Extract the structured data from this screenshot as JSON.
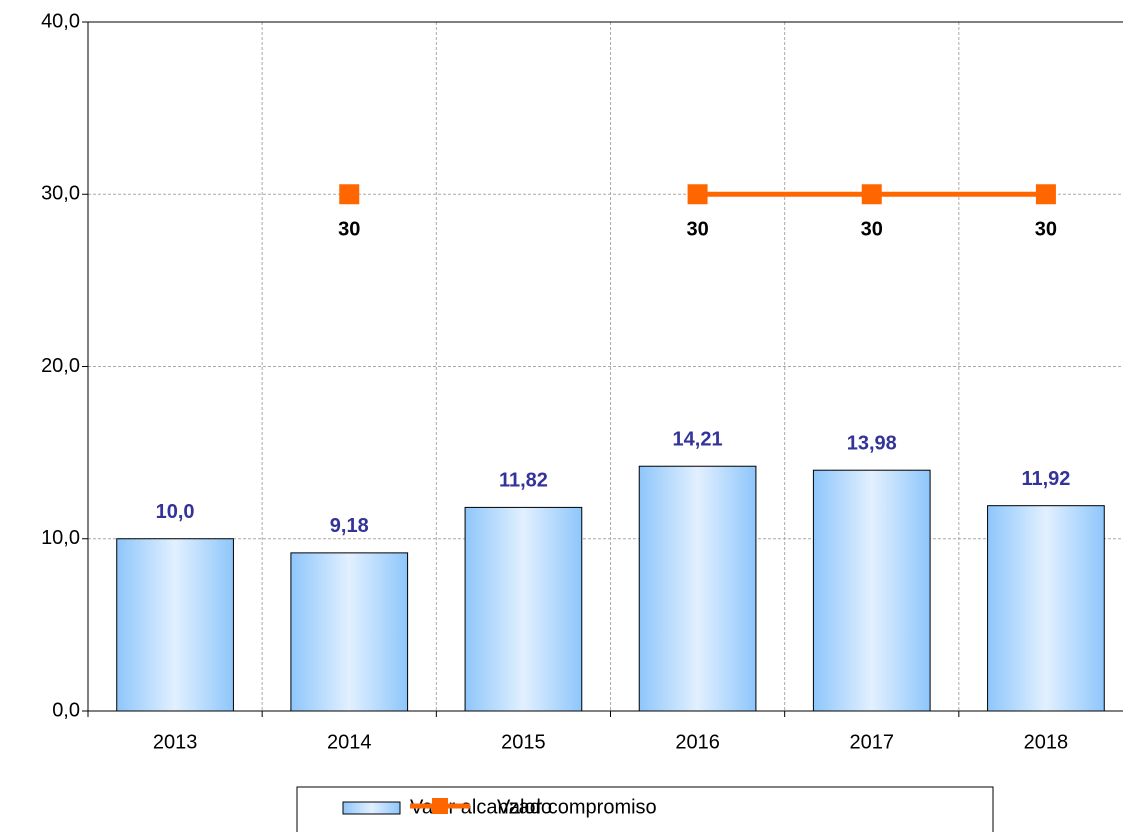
{
  "chart_data": {
    "type": "bar",
    "categories": [
      "2013",
      "2014",
      "2015",
      "2016",
      "2017",
      "2018"
    ],
    "series": [
      {
        "name": "Valor alcanzado",
        "type": "bar",
        "color": "#9ccfff",
        "values": [
          10.0,
          9.18,
          11.82,
          14.21,
          13.98,
          11.92
        ],
        "value_labels": [
          "10,0",
          "9,18",
          "11,82",
          "14,21",
          "13,98",
          "11,92"
        ]
      },
      {
        "name": "Valor compromiso",
        "type": "line",
        "color": "#ff6600",
        "values": [
          null,
          30,
          null,
          30,
          30,
          30
        ]
      }
    ],
    "ylim": [
      0,
      40
    ],
    "yticks": [
      {
        "value": 0,
        "label": "0,0"
      },
      {
        "value": 10,
        "label": "10,0"
      },
      {
        "value": 20,
        "label": "20,0"
      },
      {
        "value": 30,
        "label": "30,0"
      },
      {
        "value": 40,
        "label": "40,0"
      }
    ],
    "grid": true,
    "legend": "bottom"
  }
}
